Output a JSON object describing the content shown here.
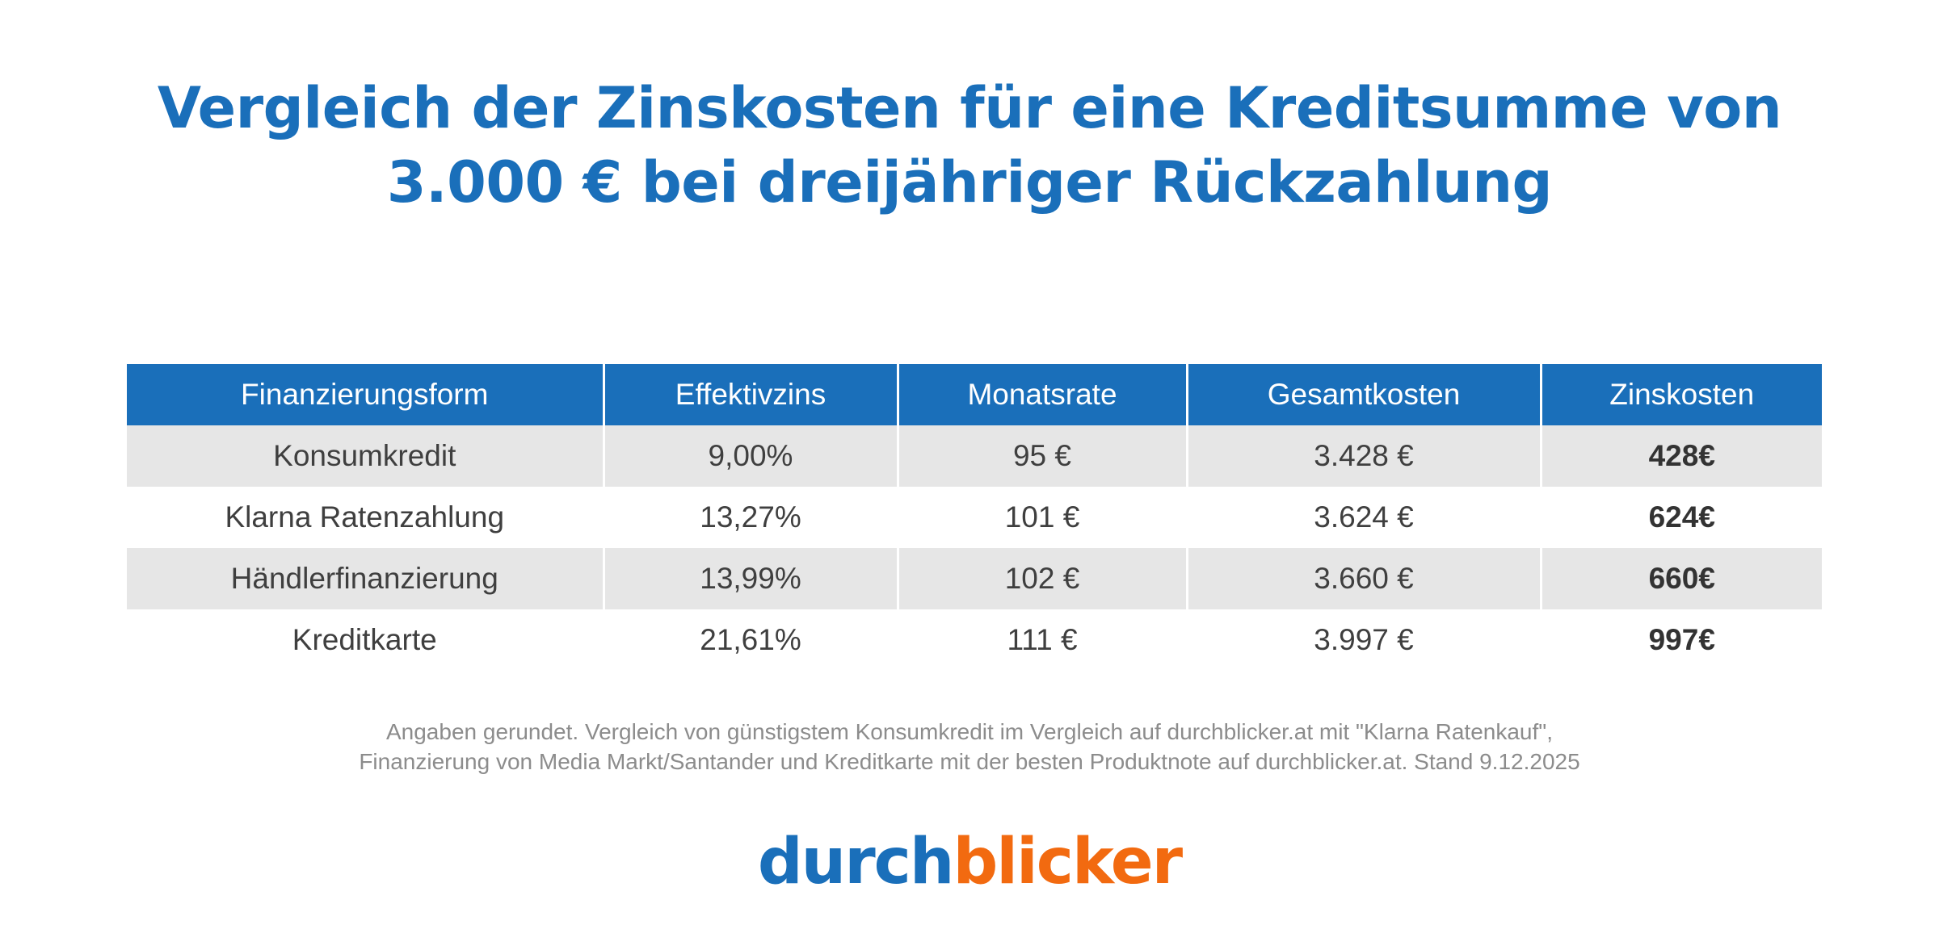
{
  "title": {
    "line1": "Vergleich der Zinskosten für eine Kreditsumme von",
    "line2": "3.000 € bei dreijähriger Rückzahlung"
  },
  "table": {
    "headers": [
      "Finanzierungsform",
      "Effektivzins",
      "Monatsrate",
      "Gesamtkosten",
      "Zinskosten"
    ],
    "rows": [
      [
        "Konsumkredit",
        "9,00%",
        "95 €",
        "3.428 €",
        "428€"
      ],
      [
        "Klarna Ratenzahlung",
        "13,27%",
        "101 €",
        "3.624 €",
        "624€"
      ],
      [
        "Händlerfinanzierung",
        "13,99%",
        "102 €",
        "3.660 €",
        "660€"
      ],
      [
        "Kreditkarte",
        "21,61%",
        "111 €",
        "3.997 €",
        "997€"
      ]
    ]
  },
  "footnote": {
    "line1": "Angaben gerundet. Vergleich von günstigstem Konsumkredit im Vergleich auf durchblicker.at mit \"Klarna Ratenkauf\",",
    "line2": "Finanzierung von Media Markt/Santander und Kreditkarte mit der besten Produktnote auf durchblicker.at. Stand 9.12.2025"
  },
  "logo": {
    "part1": "durch",
    "part2": "blicker"
  },
  "colors": {
    "brand_blue": "#1a6fba",
    "brand_orange": "#f26a10",
    "row_shade": "#e6e6e6",
    "text_dark": "#3f3f3f",
    "footnote_gray": "#8c8c8c"
  }
}
